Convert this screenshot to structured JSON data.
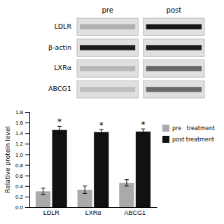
{
  "chart_data": [
    {
      "type": "blot",
      "categories": [
        "LDLR",
        "β-actin",
        "LXRα",
        "ABCG1"
      ],
      "series": [
        {
          "name": "pre",
          "values": [
            0.22,
            0.88,
            0.18,
            0.15
          ]
        },
        {
          "name": "post",
          "values": [
            0.9,
            0.88,
            0.55,
            0.52
          ]
        }
      ]
    },
    {
      "type": "bar",
      "categories": [
        "LDLR",
        "LXRα",
        "ABCG1"
      ],
      "ylabel": "Relative protein level",
      "series": [
        {
          "name": "pre   treatment",
          "color": "#aaaaaa",
          "values": [
            0.3,
            0.33,
            0.46
          ],
          "errors": [
            0.06,
            0.07,
            0.06
          ]
        },
        {
          "name": "post treatment",
          "color": "#111111",
          "values": [
            1.46,
            1.42,
            1.43
          ],
          "errors": [
            0.07,
            0.05,
            0.05
          ],
          "annotations": [
            "*",
            "*",
            "*"
          ]
        }
      ],
      "ylim": [
        0,
        1.8
      ],
      "yticks": [
        {
          "value": 0,
          "label": "0.0"
        },
        0.2,
        0.4,
        0.6,
        0.8,
        {
          "value": 1.0,
          "label": "1.0"
        },
        1.2,
        1.4,
        1.6,
        1.8
      ],
      "legend": "right",
      "grid": false
    }
  ]
}
